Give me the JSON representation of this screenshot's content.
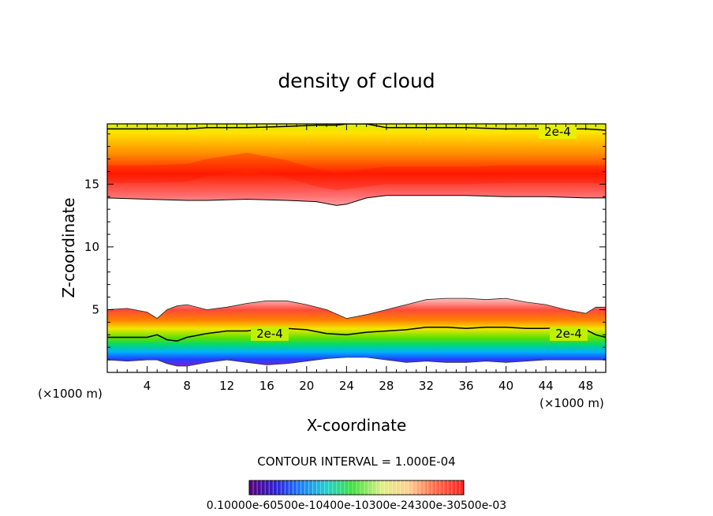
{
  "chart_data": {
    "type": "heatmap",
    "title": "density of cloud",
    "xlabel": "X-coordinate",
    "ylabel": "Z-coordinate",
    "x_unit": "(×1000 m)",
    "y_unit": "(×1000 m)",
    "xlim": [
      0,
      50
    ],
    "ylim": [
      0,
      19.8
    ],
    "x_ticks": [
      4,
      8,
      12,
      16,
      20,
      24,
      28,
      32,
      36,
      40,
      44,
      48
    ],
    "y_ticks": [
      5,
      10,
      15
    ],
    "contour_interval_text": "CONTOUR INTERVAL = 1.000E-04",
    "contour_label": "2e-4",
    "colorbar_label_text": "0.10000e-60500e-10400e-10300e-24300e-30500e-03",
    "upper_layer": {
      "x": [
        0,
        4,
        8,
        10,
        14,
        18,
        21,
        23,
        24,
        26,
        28,
        32,
        36,
        40,
        44,
        48,
        50
      ],
      "base_km": [
        13.9,
        13.8,
        13.7,
        13.7,
        13.8,
        13.7,
        13.6,
        13.3,
        13.4,
        13.9,
        14.1,
        14.1,
        14.1,
        14.0,
        14.0,
        13.9,
        13.9
      ],
      "peak_km": [
        15.8,
        15.8,
        15.9,
        16.3,
        16.8,
        16.2,
        15.5,
        15.2,
        15.3,
        15.5,
        15.7,
        15.7,
        15.7,
        15.8,
        15.8,
        15.8,
        15.8
      ],
      "contour_2e4_km": [
        19.4,
        19.4,
        19.4,
        19.5,
        19.5,
        19.6,
        19.7,
        19.7,
        19.8,
        19.8,
        19.5,
        19.5,
        19.5,
        19.4,
        19.4,
        19.4,
        19.3
      ]
    },
    "lower_layer": {
      "x": [
        0,
        2,
        4,
        5,
        6,
        7,
        8,
        10,
        12,
        14,
        16,
        18,
        20,
        22,
        24,
        26,
        28,
        30,
        32,
        34,
        36,
        38,
        40,
        42,
        44,
        46,
        48,
        49,
        50
      ],
      "top_km": [
        5.0,
        5.1,
        4.8,
        4.3,
        5.0,
        5.3,
        5.4,
        5.0,
        5.2,
        5.5,
        5.7,
        5.7,
        5.4,
        5.0,
        4.3,
        4.6,
        5.0,
        5.4,
        5.8,
        5.9,
        5.9,
        5.8,
        5.9,
        5.6,
        5.4,
        5.0,
        4.7,
        5.2,
        5.2
      ],
      "contour_2e4_km": [
        2.8,
        2.8,
        2.8,
        3.0,
        2.6,
        2.5,
        2.8,
        3.1,
        3.3,
        3.3,
        3.5,
        3.5,
        3.4,
        3.1,
        3.0,
        3.2,
        3.3,
        3.4,
        3.6,
        3.6,
        3.5,
        3.6,
        3.6,
        3.5,
        3.5,
        3.6,
        3.4,
        3.0,
        2.8
      ],
      "base_km": [
        1.0,
        0.9,
        1.0,
        1.0,
        0.7,
        0.5,
        0.5,
        0.8,
        1.0,
        0.8,
        0.6,
        0.7,
        0.9,
        1.1,
        1.2,
        1.2,
        1.0,
        0.8,
        0.9,
        0.8,
        0.8,
        0.9,
        0.8,
        0.9,
        1.0,
        1.0,
        1.0,
        1.0,
        1.0
      ]
    },
    "grid": false,
    "legend": "colorbar-bottom"
  }
}
